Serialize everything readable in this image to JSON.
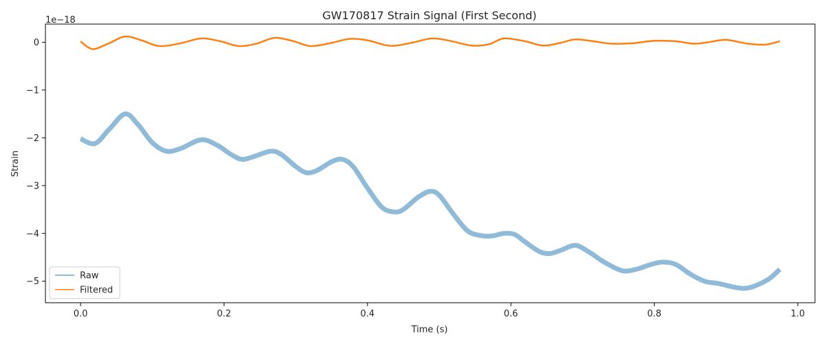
{
  "chart_data": {
    "type": "line",
    "title": "GW170817 Strain Signal (First Second)",
    "xlabel": "Time (s)",
    "ylabel": "Strain",
    "y_offset_label": "1e−18",
    "xlim": [
      -0.049,
      1.024
    ],
    "ylim": [
      -5.45,
      0.38
    ],
    "x_ticks": [
      0.0,
      0.2,
      0.4,
      0.6,
      0.8,
      1.0
    ],
    "x_tick_labels": [
      "0.0",
      "0.2",
      "0.4",
      "0.6",
      "0.8",
      "1.0"
    ],
    "y_ticks": [
      0,
      -1,
      -2,
      -3,
      -4,
      -5
    ],
    "y_tick_labels": [
      "0",
      "−1",
      "−2",
      "−3",
      "−4",
      "−5"
    ],
    "grid": false,
    "legend_position": "lower-left",
    "series": [
      {
        "name": "Raw",
        "color": "#1f77b4",
        "opacity": 0.5,
        "x": [
          0.0,
          0.02,
          0.04,
          0.062,
          0.08,
          0.1,
          0.12,
          0.14,
          0.168,
          0.19,
          0.21,
          0.225,
          0.24,
          0.265,
          0.28,
          0.3,
          0.315,
          0.33,
          0.35,
          0.365,
          0.38,
          0.4,
          0.42,
          0.437,
          0.45,
          0.47,
          0.487,
          0.5,
          0.52,
          0.54,
          0.56,
          0.575,
          0.59,
          0.605,
          0.62,
          0.64,
          0.655,
          0.67,
          0.69,
          0.71,
          0.73,
          0.755,
          0.775,
          0.795,
          0.812,
          0.83,
          0.85,
          0.87,
          0.89,
          0.91,
          0.925,
          0.94,
          0.96,
          0.975
        ],
        "values": [
          -2.02,
          -2.12,
          -1.82,
          -1.5,
          -1.72,
          -2.1,
          -2.28,
          -2.22,
          -2.04,
          -2.15,
          -2.35,
          -2.45,
          -2.4,
          -2.28,
          -2.35,
          -2.6,
          -2.73,
          -2.68,
          -2.5,
          -2.45,
          -2.6,
          -3.05,
          -3.45,
          -3.55,
          -3.5,
          -3.25,
          -3.12,
          -3.2,
          -3.6,
          -3.95,
          -4.05,
          -4.05,
          -4.0,
          -4.02,
          -4.18,
          -4.38,
          -4.42,
          -4.35,
          -4.25,
          -4.4,
          -4.6,
          -4.78,
          -4.75,
          -4.65,
          -4.6,
          -4.65,
          -4.85,
          -5.0,
          -5.05,
          -5.12,
          -5.15,
          -5.1,
          -4.95,
          -4.75
        ],
        "values_low": [
          -2.08,
          -2.18,
          -1.86,
          -1.55,
          -1.77,
          -2.15,
          -2.32,
          -2.26,
          -2.08,
          -2.19,
          -2.39,
          -2.49,
          -2.44,
          -2.32,
          -2.39,
          -2.64,
          -2.77,
          -2.72,
          -2.54,
          -2.49,
          -2.64,
          -3.09,
          -3.49,
          -3.59,
          -3.54,
          -3.29,
          -3.16,
          -3.24,
          -3.64,
          -3.99,
          -4.09,
          -4.09,
          -4.04,
          -4.06,
          -4.22,
          -4.42,
          -4.46,
          -4.39,
          -4.29,
          -4.44,
          -4.64,
          -4.82,
          -4.79,
          -4.69,
          -4.64,
          -4.69,
          -4.89,
          -5.04,
          -5.09,
          -5.16,
          -5.19,
          -5.14,
          -4.99,
          -4.8
        ],
        "values_high": [
          -1.98,
          -2.08,
          -1.78,
          -1.46,
          -1.68,
          -2.06,
          -2.24,
          -2.18,
          -2.0,
          -2.11,
          -2.31,
          -2.41,
          -2.36,
          -2.24,
          -2.31,
          -2.56,
          -2.69,
          -2.64,
          -2.46,
          -2.41,
          -2.56,
          -3.01,
          -3.41,
          -3.51,
          -3.46,
          -3.21,
          -3.08,
          -3.16,
          -3.56,
          -3.91,
          -4.01,
          -4.01,
          -3.96,
          -3.98,
          -4.14,
          -4.34,
          -4.38,
          -4.31,
          -4.21,
          -4.36,
          -4.56,
          -4.74,
          -4.71,
          -4.61,
          -4.56,
          -4.61,
          -4.81,
          -4.96,
          -5.01,
          -5.08,
          -5.11,
          -5.06,
          -4.91,
          -4.7
        ]
      },
      {
        "name": "Filtered",
        "color": "#ff7f0e",
        "opacity": 1.0,
        "x": [
          0.0,
          0.01,
          0.02,
          0.04,
          0.062,
          0.085,
          0.11,
          0.14,
          0.168,
          0.195,
          0.22,
          0.245,
          0.27,
          0.295,
          0.32,
          0.348,
          0.375,
          0.4,
          0.425,
          0.44,
          0.465,
          0.49,
          0.515,
          0.545,
          0.57,
          0.59,
          0.62,
          0.645,
          0.67,
          0.69,
          0.715,
          0.74,
          0.77,
          0.8,
          0.83,
          0.855,
          0.875,
          0.9,
          0.93,
          0.955,
          0.975
        ],
        "values": [
          0.02,
          -0.1,
          -0.14,
          -0.02,
          0.12,
          0.04,
          -0.08,
          -0.02,
          0.08,
          0.02,
          -0.08,
          -0.03,
          0.09,
          0.03,
          -0.08,
          -0.02,
          0.07,
          0.04,
          -0.06,
          -0.07,
          0.0,
          0.08,
          0.03,
          -0.07,
          -0.04,
          0.08,
          0.02,
          -0.07,
          -0.01,
          0.06,
          0.02,
          -0.03,
          -0.02,
          0.03,
          0.02,
          -0.03,
          0.0,
          0.05,
          -0.03,
          -0.05,
          0.02
        ]
      }
    ]
  }
}
